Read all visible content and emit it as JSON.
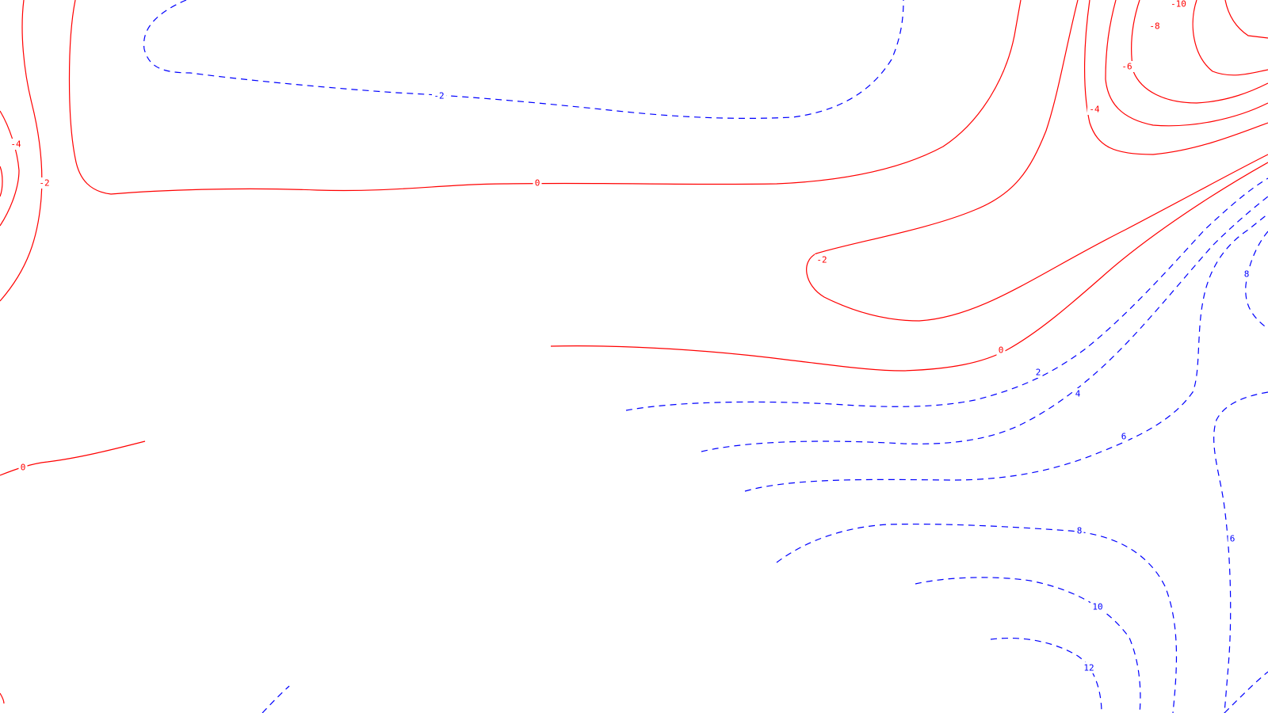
{
  "chart_data": {
    "type": "contour",
    "title": "",
    "xlabel": "",
    "ylabel": "",
    "grid": false,
    "legend": "none",
    "colors": {
      "negative_and_zero": "#ff0000",
      "positive": "#0000ff",
      "background": "#ffffff"
    },
    "line_styles": {
      "negative_and_zero": "solid",
      "positive": "dashed"
    },
    "levels": [
      -10,
      -8,
      -6,
      -4,
      -2,
      0,
      2,
      4,
      6,
      8,
      10,
      12
    ],
    "labels": [
      {
        "level": -10,
        "text": "-10"
      },
      {
        "level": -8,
        "text": "-8"
      },
      {
        "level": -6,
        "text": "-6"
      },
      {
        "level": -4,
        "text": "-4"
      },
      {
        "level": -4,
        "text": "-4"
      },
      {
        "level": -2,
        "text": "-2"
      },
      {
        "level": -2,
        "text": "-2"
      },
      {
        "level": -2,
        "text": "-2"
      },
      {
        "level": 0,
        "text": "0"
      },
      {
        "level": 0,
        "text": "0"
      },
      {
        "level": 0,
        "text": "0"
      },
      {
        "level": 2,
        "text": "2"
      },
      {
        "level": 4,
        "text": "4"
      },
      {
        "level": 6,
        "text": "6"
      },
      {
        "level": 6,
        "text": "6"
      },
      {
        "level": 8,
        "text": "8"
      },
      {
        "level": 8,
        "text": "8"
      },
      {
        "level": 10,
        "text": "10"
      },
      {
        "level": 12,
        "text": "12"
      }
    ]
  }
}
